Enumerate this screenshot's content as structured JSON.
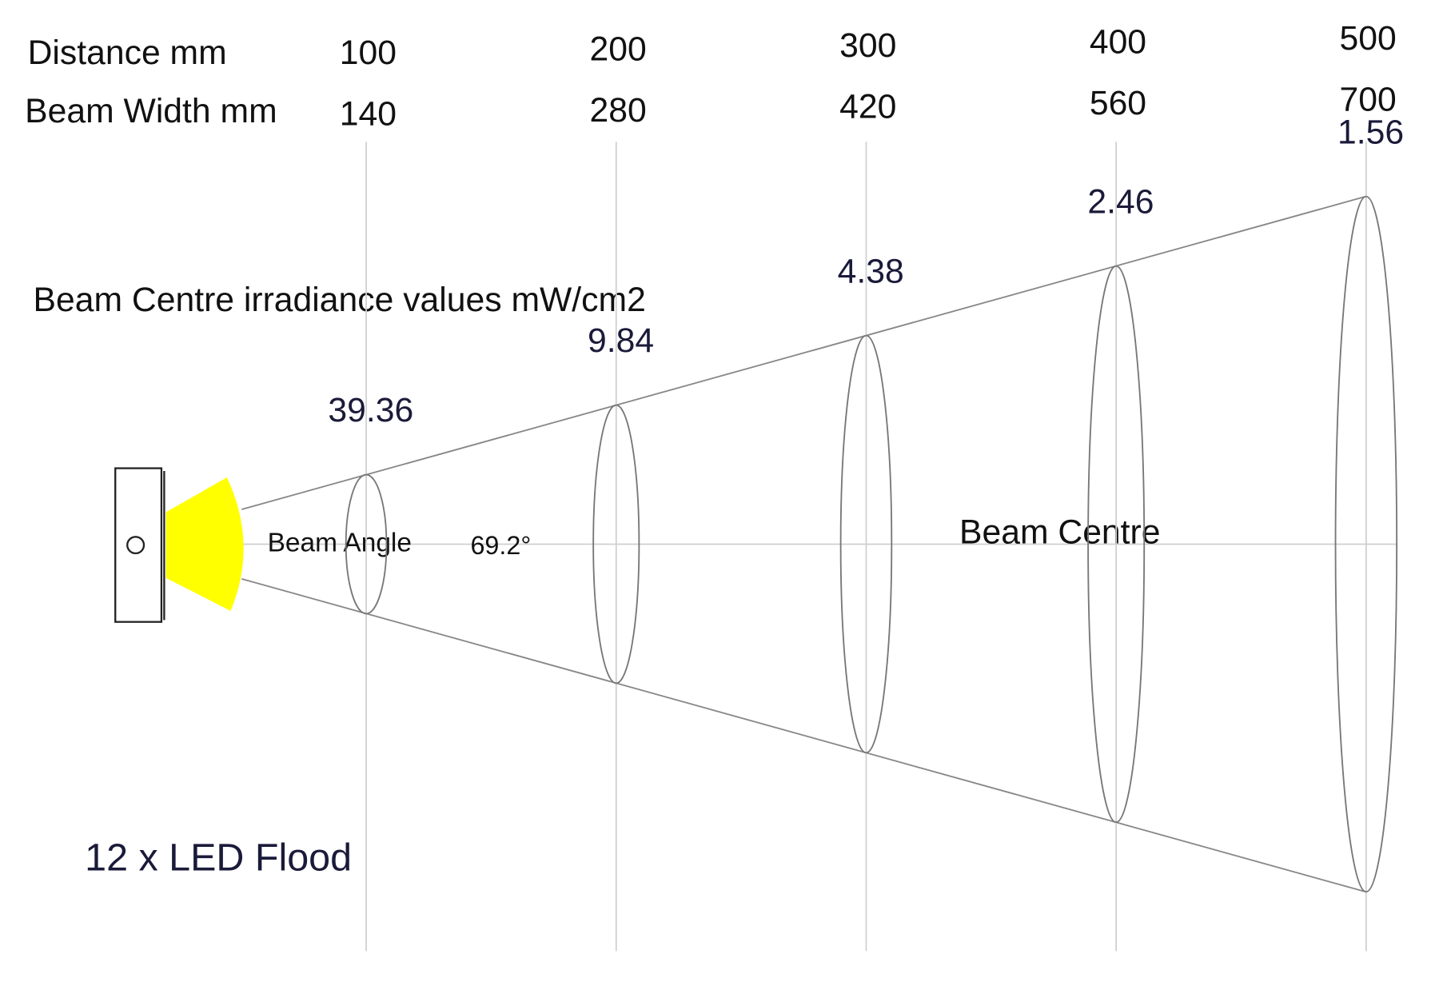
{
  "header": {
    "distance_label": "Distance mm",
    "width_label": "Beam Width mm"
  },
  "irradiance_label": "Beam Centre irradiance values mW/cm2",
  "stations": [
    {
      "distance": 100,
      "width": 140,
      "irradiance": 39.36
    },
    {
      "distance": 200,
      "width": 280,
      "irradiance": 9.84
    },
    {
      "distance": 300,
      "width": 420,
      "irradiance": 4.38
    },
    {
      "distance": 400,
      "width": 560,
      "irradiance": 2.46
    },
    {
      "distance": 500,
      "width": 700,
      "irradiance": 1.56
    }
  ],
  "beam_angle_label": "Beam Angle",
  "beam_angle": "69.2°",
  "beam_centre_label": "Beam Centre",
  "device_label": "12 x LED Flood"
}
